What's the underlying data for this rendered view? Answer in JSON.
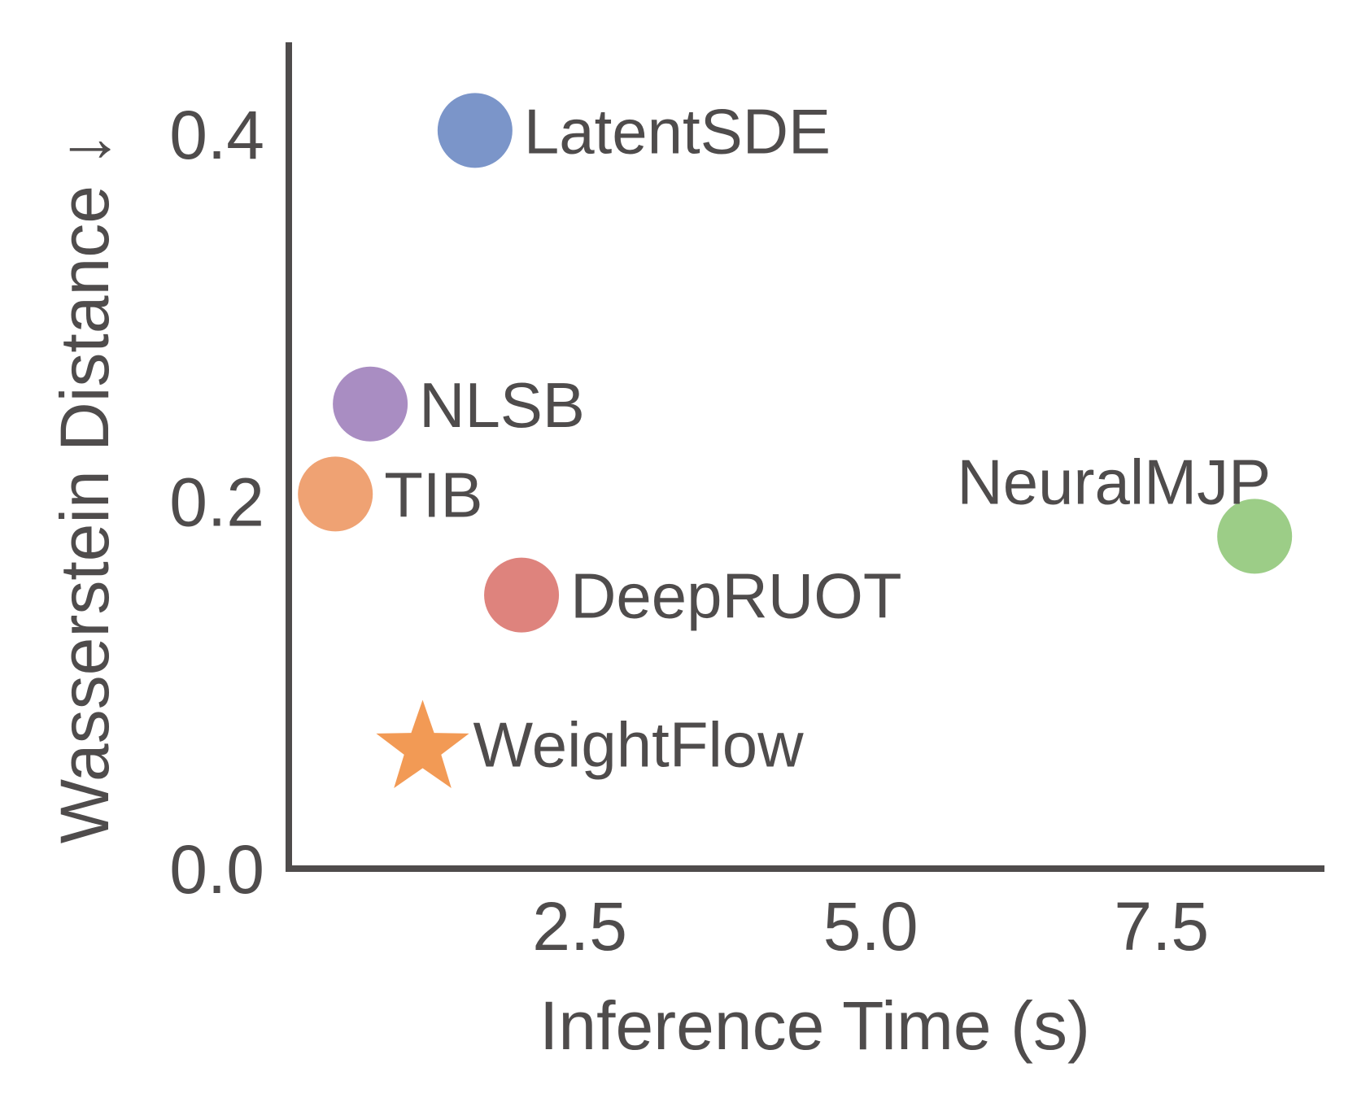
{
  "chart_data": {
    "type": "scatter",
    "title": "",
    "xlabel": "Inference Time (s)",
    "ylabel": "Wasserstein Distance ↓",
    "xlim": [
      0,
      8.9
    ],
    "ylim": [
      0,
      0.45
    ],
    "xticks": [
      2.5,
      5.0,
      7.5
    ],
    "xtick_labels": [
      "2.5",
      "5.0",
      "7.5"
    ],
    "yticks": [
      0.0,
      0.2,
      0.4
    ],
    "ytick_labels": [
      "0.0",
      "0.2",
      "0.4"
    ],
    "grid": false,
    "points": [
      {
        "name": "LatentSDE",
        "x": 1.6,
        "y": 0.402,
        "color": "#7b95c9",
        "marker": "circle",
        "label_side": "right"
      },
      {
        "name": "NLSB",
        "x": 0.7,
        "y": 0.253,
        "color": "#a98dc2",
        "marker": "circle",
        "label_side": "right"
      },
      {
        "name": "TIB",
        "x": 0.4,
        "y": 0.204,
        "color": "#efa273",
        "marker": "circle",
        "label_side": "right"
      },
      {
        "name": "NeuralMJP",
        "x": 8.3,
        "y": 0.181,
        "color": "#9ccd87",
        "marker": "circle",
        "label_side": "above-left"
      },
      {
        "name": "DeepRUOT",
        "x": 2.0,
        "y": 0.149,
        "color": "#de837d",
        "marker": "circle",
        "label_side": "right"
      },
      {
        "name": "WeightFlow",
        "x": 1.15,
        "y": 0.068,
        "color": "#f29a55",
        "marker": "star",
        "label_side": "right"
      }
    ]
  }
}
